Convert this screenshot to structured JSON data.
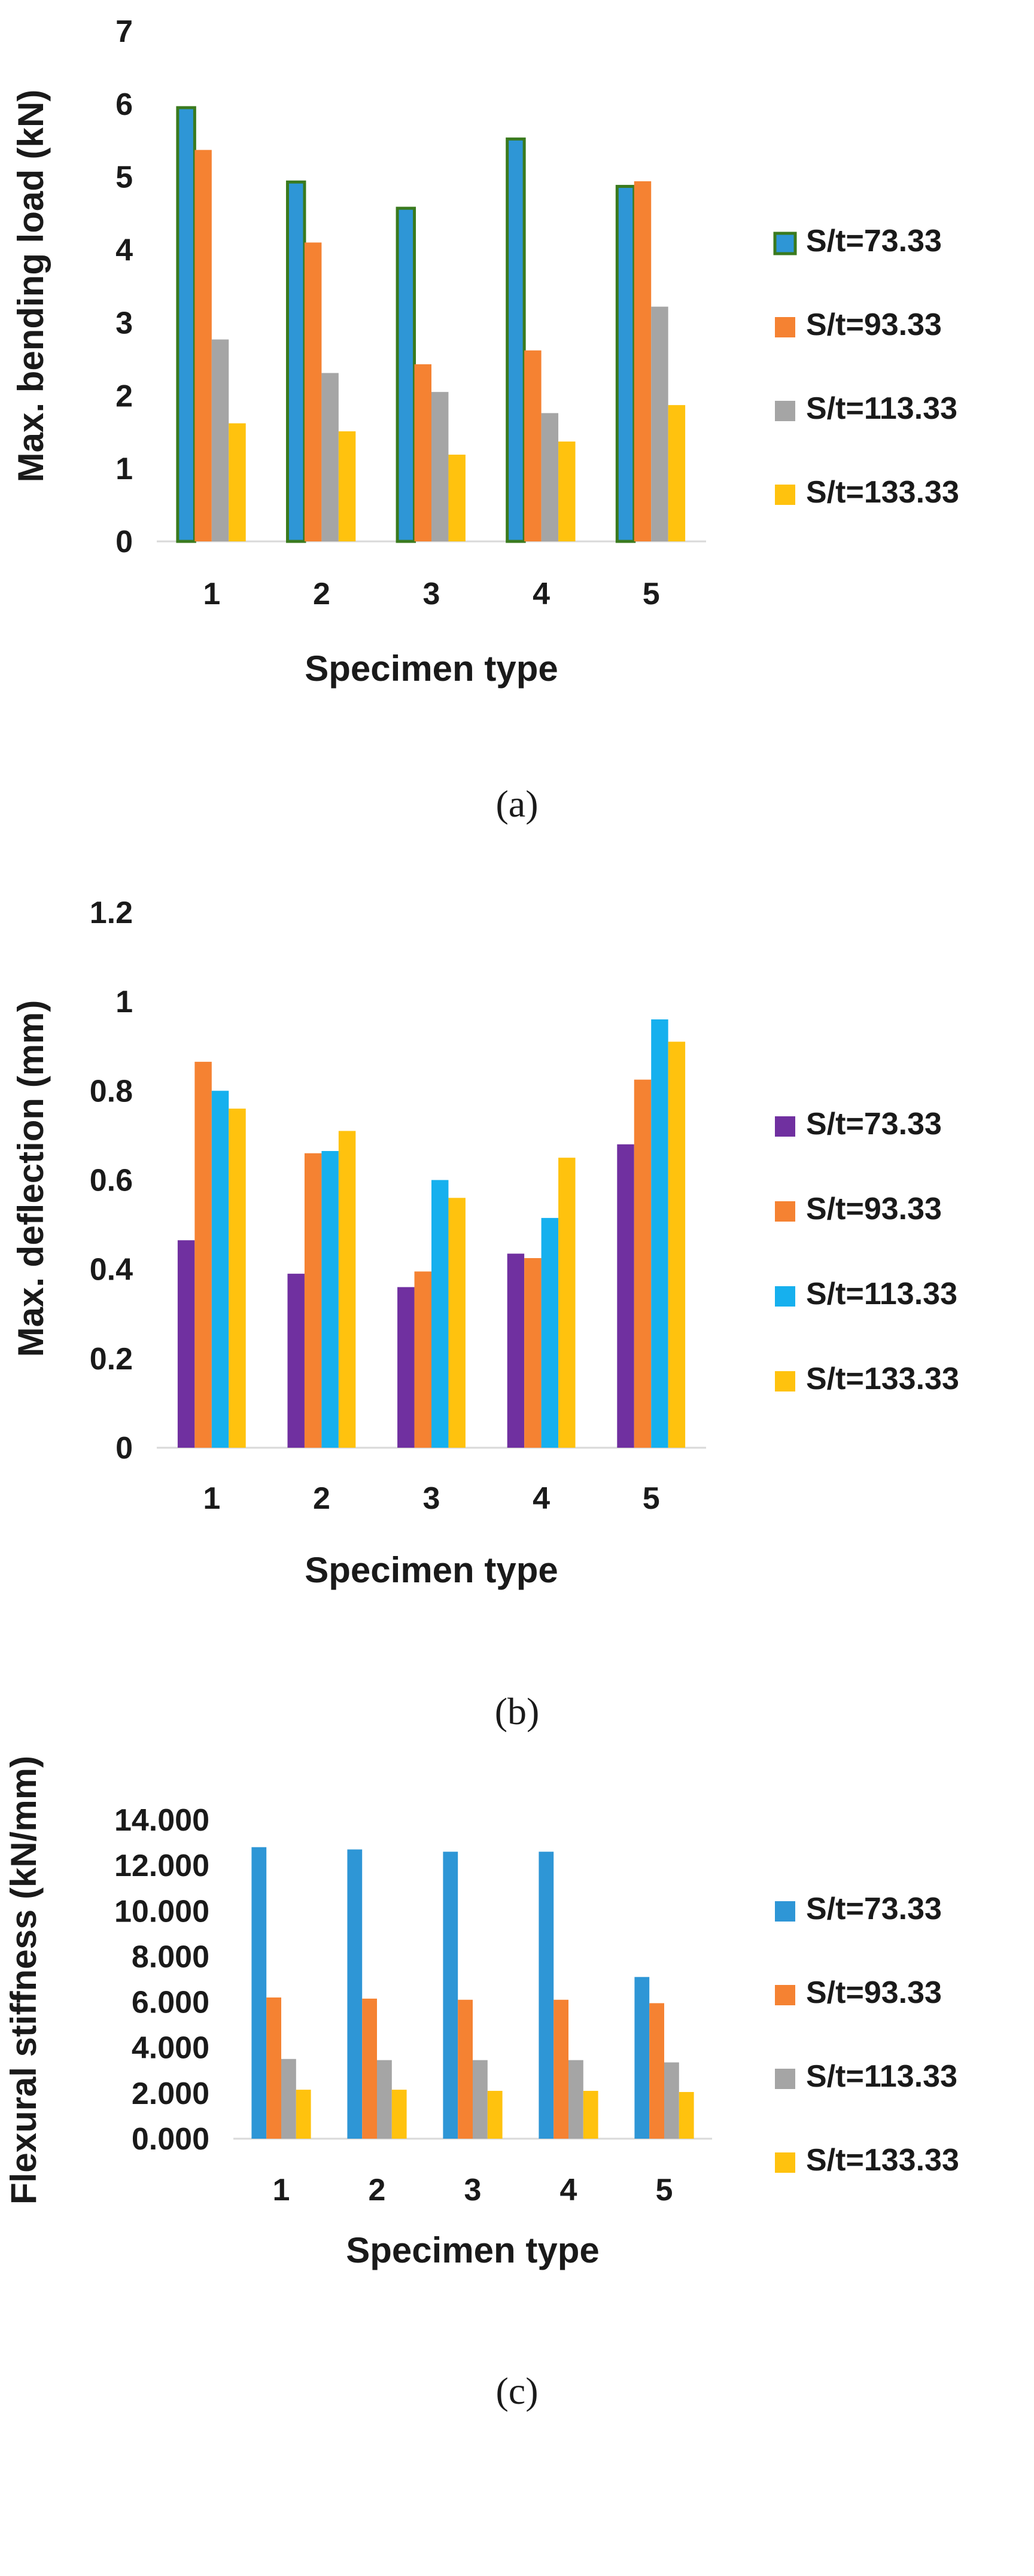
{
  "chart_data": [
    {
      "type": "bar",
      "panel": "a",
      "caption": "(a)",
      "categories": [
        "1",
        "2",
        "3",
        "4",
        "5"
      ],
      "ylabel": "Max. bending load (kN)",
      "xlabel": "Specimen type",
      "ylim": [
        0,
        7
      ],
      "yticks": [
        "0",
        "1",
        "2",
        "3",
        "4",
        "5",
        "6",
        "7"
      ],
      "ytick_values": [
        0,
        1,
        2,
        3,
        4,
        5,
        6,
        7
      ],
      "legend_position": "right",
      "series": [
        {
          "name": "S/t=73.33",
          "color": "#2E96D6",
          "outline": "#3A7A1E",
          "values": [
            5.95,
            4.93,
            4.57,
            5.52,
            4.87
          ]
        },
        {
          "name": "S/t=93.33",
          "color": "#F58232",
          "values": [
            5.37,
            4.1,
            2.43,
            2.62,
            4.94
          ]
        },
        {
          "name": "S/t=113.33",
          "color": "#A5A5A5",
          "values": [
            2.77,
            2.31,
            2.05,
            1.76,
            3.22
          ]
        },
        {
          "name": "S/t=133.33",
          "color": "#FFC20E",
          "values": [
            1.62,
            1.51,
            1.19,
            1.37,
            1.87
          ]
        }
      ]
    },
    {
      "type": "bar",
      "panel": "b",
      "caption": "(b)",
      "categories": [
        "1",
        "2",
        "3",
        "4",
        "5"
      ],
      "ylabel": "Max. deflection (mm)",
      "xlabel": "Specimen type",
      "ylim": [
        0,
        1.2
      ],
      "yticks": [
        "0",
        "0.2",
        "0.4",
        "0.6",
        "0.8",
        "1",
        "1.2"
      ],
      "ytick_values": [
        0,
        0.2,
        0.4,
        0.6,
        0.8,
        1.0,
        1.2
      ],
      "legend_position": "right",
      "series": [
        {
          "name": "S/t=73.33",
          "color": "#7030A0",
          "values": [
            0.465,
            0.39,
            0.36,
            0.435,
            0.68
          ]
        },
        {
          "name": "S/t=93.33",
          "color": "#F58232",
          "values": [
            0.865,
            0.66,
            0.395,
            0.425,
            0.825
          ]
        },
        {
          "name": "S/t=113.33",
          "color": "#16B0EE",
          "values": [
            0.8,
            0.665,
            0.6,
            0.515,
            0.96
          ]
        },
        {
          "name": "S/t=133.33",
          "color": "#FFC20E",
          "values": [
            0.76,
            0.71,
            0.56,
            0.65,
            0.91
          ]
        }
      ]
    },
    {
      "type": "bar",
      "panel": "c",
      "caption": "(c)",
      "categories": [
        "1",
        "2",
        "3",
        "4",
        "5"
      ],
      "ylabel": "Flexural stiffness (kN/mm)",
      "xlabel": "Specimen type",
      "ylim": [
        0,
        14
      ],
      "yticks": [
        "0.000",
        "2.000",
        "4.000",
        "6.000",
        "8.000",
        "10.000",
        "12.000",
        "14.000"
      ],
      "ytick_values": [
        0,
        2,
        4,
        6,
        8,
        10,
        12,
        14
      ],
      "legend_position": "right",
      "series": [
        {
          "name": "S/t=73.33",
          "color": "#2E96D6",
          "values": [
            12.8,
            12.7,
            12.6,
            12.6,
            7.1
          ]
        },
        {
          "name": "S/t=93.33",
          "color": "#F58232",
          "values": [
            6.2,
            6.15,
            6.1,
            6.1,
            5.95
          ]
        },
        {
          "name": "S/t=113.33",
          "color": "#A5A5A5",
          "values": [
            3.5,
            3.45,
            3.45,
            3.45,
            3.35
          ]
        },
        {
          "name": "S/t=133.33",
          "color": "#FFC20E",
          "values": [
            2.15,
            2.15,
            2.1,
            2.1,
            2.05
          ]
        }
      ]
    }
  ]
}
